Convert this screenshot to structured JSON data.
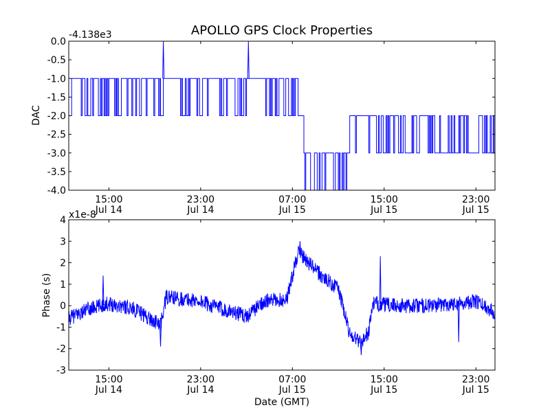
{
  "chart_data": [
    {
      "type": "line",
      "title": "APOLLO GPS Clock Properties",
      "xlabel": "",
      "ylabel": "DAC",
      "offset_text": "-4.138e3",
      "ylim": [
        -4.0,
        0.0
      ],
      "yticks": [
        "-4.0",
        "-3.5",
        "-3.0",
        "-2.5",
        "-2.0",
        "-1.5",
        "-1.0",
        "-0.5",
        "0.0"
      ],
      "xlim": [
        "Jul 14 11:30",
        "Jul 16 00:40"
      ],
      "xticks": [
        {
          "time": "Jul 14 15:00",
          "line1": "15:00",
          "line2": "Jul 14"
        },
        {
          "time": "Jul 14 23:00",
          "line1": "23:00",
          "line2": "Jul 14"
        },
        {
          "time": "Jul 15 07:00",
          "line1": "07:00",
          "line2": "Jul 15"
        },
        {
          "time": "Jul 15 15:00",
          "line1": "15:00",
          "line2": "Jul 15"
        },
        {
          "time": "Jul 15 23:00",
          "line1": "23:00",
          "line2": "Jul 15"
        }
      ],
      "color": "#0000ff",
      "segments": [
        {
          "from": "Jul 14 11:30",
          "to": "Jul 14 19:45",
          "base": -1.0,
          "alt": -2.0,
          "flicker": 0.35
        },
        {
          "from": "Jul 14 19:45",
          "to": "Jul 14 21:00",
          "base": -1.0,
          "alt": -2.0,
          "flicker": 0.05
        },
        {
          "from": "Jul 14 21:00",
          "to": "Jul 15 03:00",
          "base": -1.0,
          "alt": -2.0,
          "flicker": 0.4
        },
        {
          "from": "Jul 15 03:00",
          "to": "Jul 15 04:30",
          "base": -1.0,
          "alt": -2.0,
          "flicker": 0.05
        },
        {
          "from": "Jul 15 04:30",
          "to": "Jul 15 07:30",
          "base": -1.0,
          "alt": -2.0,
          "flicker": 0.25
        },
        {
          "from": "Jul 15 07:30",
          "to": "Jul 15 08:00",
          "base": -2.0,
          "alt": -2.0,
          "flicker": 0.0
        },
        {
          "from": "Jul 15 08:00",
          "to": "Jul 15 12:00",
          "base": -3.0,
          "alt": -4.0,
          "flicker": 0.35
        },
        {
          "from": "Jul 15 12:00",
          "to": "Jul 15 14:20",
          "base": -2.0,
          "alt": -3.0,
          "flicker": 0.05
        },
        {
          "from": "Jul 15 14:20",
          "to": "Jul 16 00:40",
          "base": -3.0,
          "alt": -2.0,
          "flicker": 0.3
        }
      ],
      "spikes": [
        {
          "time": "Jul 14 19:45",
          "value": 0.0
        },
        {
          "time": "Jul 15 03:10",
          "value": 0.0
        }
      ]
    },
    {
      "type": "line",
      "title": "",
      "xlabel": "Date (GMT)",
      "ylabel": "Phase (s)",
      "offset_text": "x1e-8",
      "ylim": [
        -3,
        4
      ],
      "yticks": [
        "-3",
        "-2",
        "-1",
        "0",
        "1",
        "2",
        "3",
        "4"
      ],
      "xlim": [
        "Jul 14 11:30",
        "Jul 16 00:40"
      ],
      "xticks": [
        {
          "time": "Jul 14 15:00",
          "line1": "15:00",
          "line2": "Jul 14"
        },
        {
          "time": "Jul 14 23:00",
          "line1": "23:00",
          "line2": "Jul 14"
        },
        {
          "time": "Jul 15 07:00",
          "line1": "07:00",
          "line2": "Jul 15"
        },
        {
          "time": "Jul 15 15:00",
          "line1": "15:00",
          "line2": "Jul 15"
        },
        {
          "time": "Jul 15 23:00",
          "line1": "23:00",
          "line2": "Jul 15"
        }
      ],
      "color": "#0000ff",
      "trend": [
        {
          "time": "Jul 14 11:30",
          "value": -0.6
        },
        {
          "time": "Jul 14 13:00",
          "value": -0.2
        },
        {
          "time": "Jul 14 15:00",
          "value": 0.1
        },
        {
          "time": "Jul 14 17:00",
          "value": -0.1
        },
        {
          "time": "Jul 14 19:30",
          "value": -0.9
        },
        {
          "time": "Jul 14 20:00",
          "value": 0.4
        },
        {
          "time": "Jul 14 23:00",
          "value": 0.2
        },
        {
          "time": "Jul 15 00:00",
          "value": 0.0
        },
        {
          "time": "Jul 15 02:30",
          "value": -0.4
        },
        {
          "time": "Jul 15 03:00",
          "value": -0.5
        },
        {
          "time": "Jul 15 04:30",
          "value": 0.2
        },
        {
          "time": "Jul 15 06:30",
          "value": 0.3
        },
        {
          "time": "Jul 15 07:30",
          "value": 2.5
        },
        {
          "time": "Jul 15 09:30",
          "value": 1.4
        },
        {
          "time": "Jul 15 11:00",
          "value": 0.8
        },
        {
          "time": "Jul 15 12:00",
          "value": -1.3
        },
        {
          "time": "Jul 15 13:00",
          "value": -1.7
        },
        {
          "time": "Jul 15 13:40",
          "value": -1.2
        },
        {
          "time": "Jul 15 14:00",
          "value": 0.1
        },
        {
          "time": "Jul 15 16:00",
          "value": 0.0
        },
        {
          "time": "Jul 15 19:00",
          "value": 0.0
        },
        {
          "time": "Jul 15 23:00",
          "value": 0.2
        },
        {
          "time": "Jul 16 00:40",
          "value": -0.3
        }
      ],
      "noise_amplitude": 0.35,
      "spikes": [
        {
          "time": "Jul 14 14:30",
          "value": 1.4
        },
        {
          "time": "Jul 14 19:30",
          "value": -1.9
        },
        {
          "time": "Jul 15 07:40",
          "value": 3.0
        },
        {
          "time": "Jul 15 13:00",
          "value": -2.3
        },
        {
          "time": "Jul 15 14:40",
          "value": 2.3
        },
        {
          "time": "Jul 15 21:30",
          "value": -1.7
        }
      ]
    }
  ]
}
